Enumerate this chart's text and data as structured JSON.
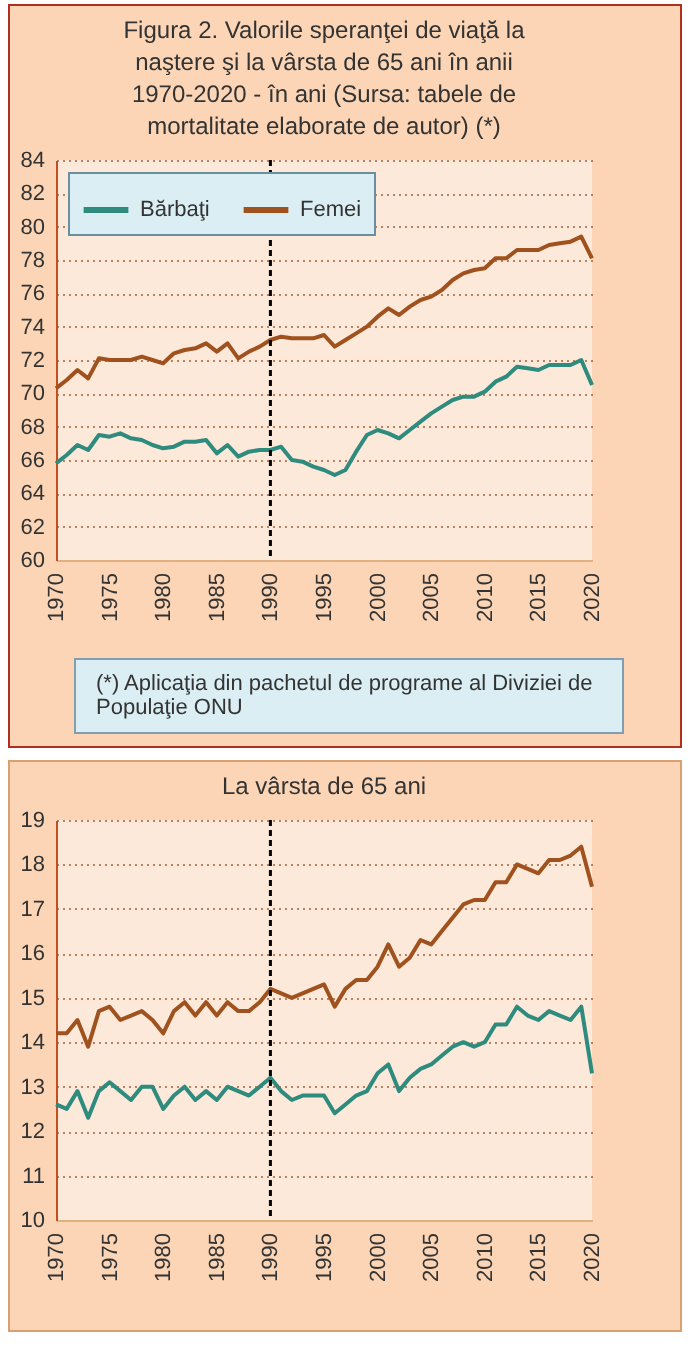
{
  "chart_data": [
    {
      "type": "line",
      "title": "Figura 2. Valorile speranţei de viaţă la naştere şi la vârsta de 65 ani în anii 1970-2020 - în ani (Sursa: tabele de mortalitate elaborate de autor) (*)",
      "x": [
        1970,
        1971,
        1972,
        1973,
        1974,
        1975,
        1976,
        1977,
        1978,
        1979,
        1980,
        1981,
        1982,
        1983,
        1984,
        1985,
        1986,
        1987,
        1988,
        1989,
        1990,
        1991,
        1992,
        1993,
        1994,
        1995,
        1996,
        1997,
        1998,
        1999,
        2000,
        2001,
        2002,
        2003,
        2004,
        2005,
        2006,
        2007,
        2008,
        2009,
        2010,
        2011,
        2012,
        2013,
        2014,
        2015,
        2016,
        2017,
        2018,
        2019,
        2020
      ],
      "series": [
        {
          "name": "Bărbaţi",
          "color": "#2e8b7e",
          "values": [
            65.8,
            66.3,
            66.9,
            66.6,
            67.5,
            67.4,
            67.6,
            67.3,
            67.2,
            66.9,
            66.7,
            66.8,
            67.1,
            67.1,
            67.2,
            66.4,
            66.9,
            66.2,
            66.5,
            66.6,
            66.6,
            66.8,
            66.0,
            65.9,
            65.6,
            65.4,
            65.1,
            65.4,
            66.5,
            67.5,
            67.8,
            67.6,
            67.3,
            67.8,
            68.3,
            68.8,
            69.2,
            69.6,
            69.8,
            69.8,
            70.1,
            70.7,
            71.0,
            71.6,
            71.5,
            71.4,
            71.7,
            71.7,
            71.7,
            72.0,
            70.5
          ]
        },
        {
          "name": "Femei",
          "color": "#a0521e",
          "values": [
            70.3,
            70.8,
            71.4,
            70.9,
            72.1,
            72.0,
            72.0,
            72.0,
            72.2,
            72.0,
            71.8,
            72.4,
            72.6,
            72.7,
            73.0,
            72.5,
            73.0,
            72.1,
            72.5,
            72.8,
            73.2,
            73.4,
            73.3,
            73.3,
            73.3,
            73.5,
            72.8,
            73.2,
            73.6,
            74.0,
            74.6,
            75.1,
            74.7,
            75.2,
            75.6,
            75.8,
            76.2,
            76.8,
            77.2,
            77.4,
            77.5,
            78.1,
            78.1,
            78.6,
            78.6,
            78.6,
            78.9,
            79.0,
            79.1,
            79.4,
            78.1
          ]
        }
      ],
      "xlim": [
        1970,
        2020
      ],
      "xticks": [
        1970,
        1975,
        1980,
        1985,
        1990,
        1995,
        2000,
        2005,
        2010,
        2015,
        2020
      ],
      "ylim": [
        60,
        84
      ],
      "yticks": [
        60,
        62,
        64,
        66,
        68,
        70,
        72,
        74,
        76,
        78,
        80,
        82,
        84
      ],
      "grid": "y",
      "legend": "top left",
      "ref_lines": [
        {
          "axis": "x",
          "value": 1990,
          "line_style": "dashed",
          "color": "#000000"
        }
      ],
      "annotations": [
        "(*) Aplicaţia din pachetul de programe al Diviziei de Populaţie ONU"
      ]
    },
    {
      "type": "line",
      "title": "La vârsta de 65 ani",
      "x": [
        1970,
        1971,
        1972,
        1973,
        1974,
        1975,
        1976,
        1977,
        1978,
        1979,
        1980,
        1981,
        1982,
        1983,
        1984,
        1985,
        1986,
        1987,
        1988,
        1989,
        1990,
        1991,
        1992,
        1993,
        1994,
        1995,
        1996,
        1997,
        1998,
        1999,
        2000,
        2001,
        2002,
        2003,
        2004,
        2005,
        2006,
        2007,
        2008,
        2009,
        2010,
        2011,
        2012,
        2013,
        2014,
        2015,
        2016,
        2017,
        2018,
        2019,
        2020
      ],
      "series": [
        {
          "color": "#2e8b7e",
          "values": [
            12.6,
            12.5,
            12.9,
            12.3,
            12.9,
            13.1,
            12.9,
            12.7,
            13.0,
            13.0,
            12.5,
            12.8,
            13.0,
            12.7,
            12.9,
            12.7,
            13.0,
            12.9,
            12.8,
            13.0,
            13.2,
            12.9,
            12.7,
            12.8,
            12.8,
            12.8,
            12.4,
            12.6,
            12.8,
            12.9,
            13.3,
            13.5,
            12.9,
            13.2,
            13.4,
            13.5,
            13.7,
            13.9,
            14.0,
            13.9,
            14.0,
            14.4,
            14.4,
            14.8,
            14.6,
            14.5,
            14.7,
            14.6,
            14.5,
            14.8,
            13.3
          ]
        },
        {
          "color": "#a0521e",
          "values": [
            14.2,
            14.2,
            14.5,
            13.9,
            14.7,
            14.8,
            14.5,
            14.6,
            14.7,
            14.5,
            14.2,
            14.7,
            14.9,
            14.6,
            14.9,
            14.6,
            14.9,
            14.7,
            14.7,
            14.9,
            15.2,
            15.1,
            15.0,
            15.1,
            15.2,
            15.3,
            14.8,
            15.2,
            15.4,
            15.4,
            15.7,
            16.2,
            15.7,
            15.9,
            16.3,
            16.2,
            16.5,
            16.8,
            17.1,
            17.2,
            17.2,
            17.6,
            17.6,
            18.0,
            17.9,
            17.8,
            18.1,
            18.1,
            18.2,
            18.4,
            17.5
          ]
        }
      ],
      "xlim": [
        1970,
        2020
      ],
      "xticks": [
        1970,
        1975,
        1980,
        1985,
        1990,
        1995,
        2000,
        2005,
        2010,
        2015,
        2020
      ],
      "ylim": [
        10,
        19
      ],
      "yticks": [
        10,
        11,
        12,
        13,
        14,
        15,
        16,
        17,
        18,
        19
      ],
      "grid": "y",
      "ref_lines": [
        {
          "axis": "x",
          "value": 1990,
          "line_style": "dashed",
          "color": "#000000"
        }
      ]
    }
  ]
}
